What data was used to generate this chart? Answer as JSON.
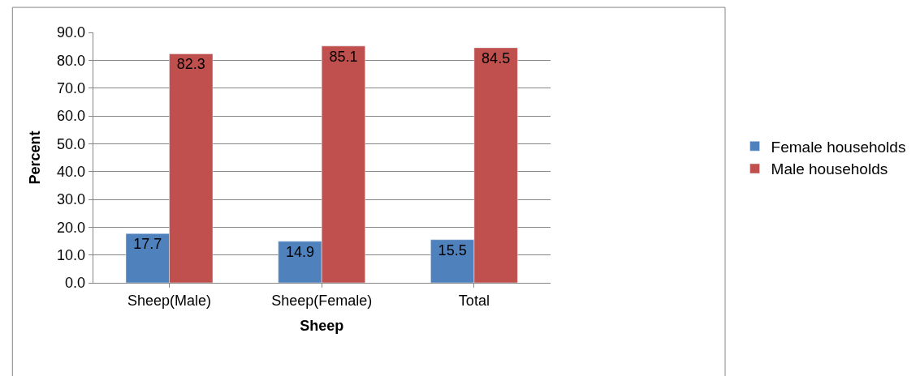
{
  "chart_data": {
    "type": "bar",
    "xlabel": "Sheep",
    "ylabel": "Percent",
    "categories": [
      "Sheep(Male)",
      "Sheep(Female)",
      "Total"
    ],
    "series": [
      {
        "name": "Female households",
        "color": "#4f81bd",
        "values": [
          17.7,
          14.9,
          15.5
        ]
      },
      {
        "name": "Male households",
        "color": "#c0504d",
        "values": [
          82.3,
          85.1,
          84.5
        ]
      }
    ],
    "ylim": [
      0,
      90
    ],
    "yticks": [
      {
        "value": 0,
        "label": "0.0"
      },
      {
        "value": 10,
        "label": "10.0"
      },
      {
        "value": 20,
        "label": "20.0"
      },
      {
        "value": 30,
        "label": "30.0"
      },
      {
        "value": 40,
        "label": "40.0"
      },
      {
        "value": 50,
        "label": "50.0"
      },
      {
        "value": 60,
        "label": "60.0"
      },
      {
        "value": 70,
        "label": "70.0"
      },
      {
        "value": 80,
        "label": "80.0"
      },
      {
        "value": 90,
        "label": "90.0"
      }
    ],
    "grid": "y",
    "legend": "right",
    "data_labels": true
  }
}
